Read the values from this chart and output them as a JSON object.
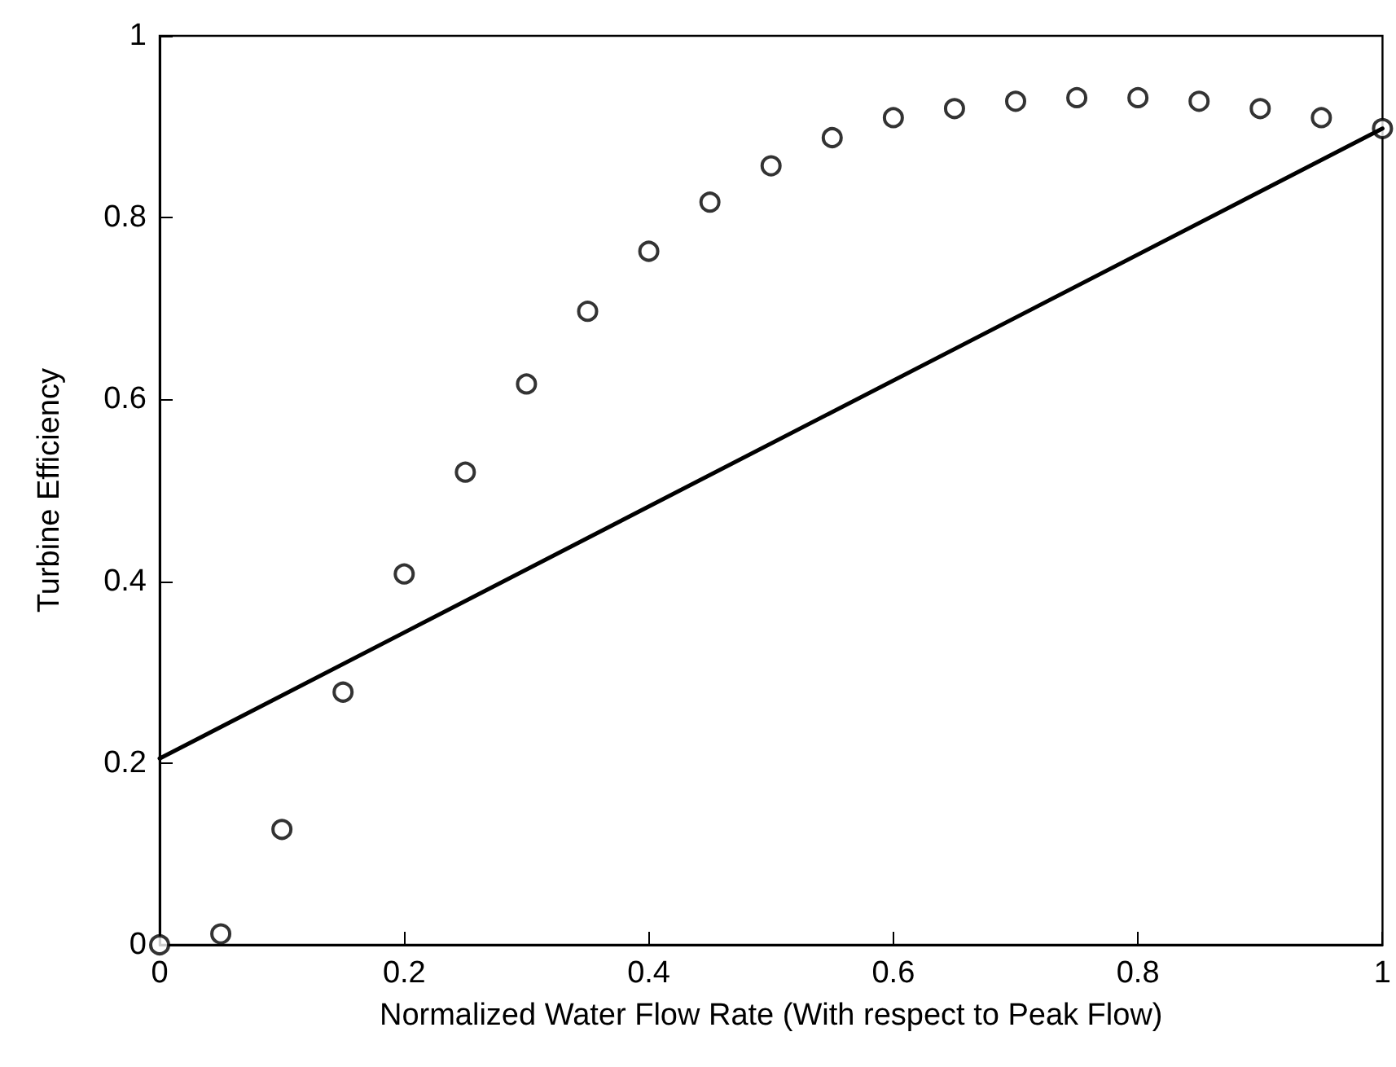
{
  "chart_data": {
    "type": "scatter",
    "xlabel": "Normalized Water Flow Rate (With respect to Peak Flow)",
    "ylabel": "Turbine Efficiency",
    "xlim": [
      0,
      1
    ],
    "ylim": [
      0,
      1
    ],
    "xticks": [
      0,
      0.2,
      0.4,
      0.6,
      0.8,
      1
    ],
    "yticks": [
      0,
      0.2,
      0.4,
      0.6,
      0.8,
      1
    ],
    "grid": false,
    "series": [
      {
        "type": "scatter",
        "marker": "circle",
        "color": "#000000",
        "x": [
          0,
          0.05,
          0.1,
          0.15,
          0.2,
          0.25,
          0.3,
          0.35,
          0.4,
          0.45,
          0.5,
          0.55,
          0.6,
          0.65,
          0.7,
          0.75,
          0.8,
          0.85,
          0.9,
          0.95,
          1
        ],
        "values": [
          0,
          0.012,
          0.127,
          0.278,
          0.408,
          0.52,
          0.617,
          0.697,
          0.763,
          0.817,
          0.857,
          0.888,
          0.91,
          0.92,
          0.928,
          0.932,
          0.932,
          0.928,
          0.92,
          0.91,
          0.898
        ]
      },
      {
        "type": "line",
        "marker": "none",
        "line_style": "solid",
        "color": "#000000",
        "x": [
          0,
          1
        ],
        "values": [
          0.205,
          0.898
        ]
      }
    ]
  }
}
